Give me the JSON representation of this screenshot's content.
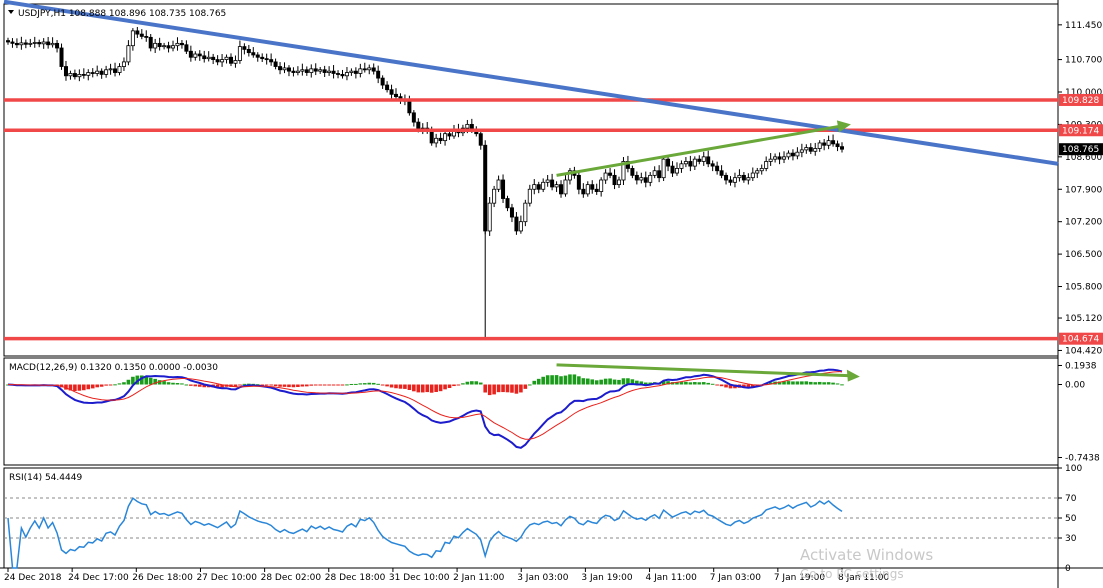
{
  "chart_data": {
    "type": "candlestick",
    "symbol": "USDJPY",
    "timeframe": "H1",
    "header_text": "USDJPY,H1  108.888 108.896 108.735 108.765",
    "last_price": "108.765",
    "price_axis": [
      "111.450",
      "110.700",
      "110.000",
      "109.300",
      "108.600",
      "107.900",
      "107.200",
      "106.500",
      "105.800",
      "105.120",
      "104.420"
    ],
    "price_range": [
      104.3,
      111.9
    ],
    "time_axis": [
      "24 Dec 2018",
      "24 Dec 17:00",
      "26 Dec 18:00",
      "27 Dec 10:00",
      "28 Dec 02:00",
      "28 Dec 18:00",
      "31 Dec 10:00",
      "2 Jan 11:00",
      "3 Jan 03:00",
      "3 Jan 19:00",
      "4 Jan 11:00",
      "7 Jan 03:00",
      "7 Jan 19:00",
      "8 Jan 11:00"
    ],
    "levels": [
      {
        "label": "109.828",
        "value": 109.828,
        "color": "#f04848"
      },
      {
        "label": "109.174",
        "value": 109.174,
        "color": "#f04848"
      },
      {
        "label": "104.674",
        "value": 104.674,
        "color": "#f04848"
      }
    ],
    "trendline": {
      "from": [
        0,
        111.95
      ],
      "to": [
        1.0,
        108.45
      ],
      "color": "#4a74c8"
    },
    "closes": [
      111.08,
      111.05,
      111.02,
      111.06,
      111.03,
      111.05,
      111.07,
      111.04,
      111.08,
      111.02,
      111.05,
      110.95,
      110.55,
      110.35,
      110.4,
      110.33,
      110.38,
      110.36,
      110.42,
      110.4,
      110.45,
      110.38,
      110.48,
      110.5,
      110.42,
      110.55,
      110.65,
      111.0,
      111.32,
      111.25,
      111.2,
      111.18,
      110.95,
      111.05,
      110.98,
      111.0,
      110.95,
      111.0,
      111.05,
      111.02,
      110.88,
      110.75,
      110.82,
      110.78,
      110.72,
      110.75,
      110.7,
      110.65,
      110.7,
      110.75,
      110.62,
      110.68,
      110.98,
      110.92,
      110.85,
      110.8,
      110.75,
      110.72,
      110.7,
      110.65,
      110.55,
      110.48,
      110.52,
      110.45,
      110.42,
      110.45,
      110.48,
      110.42,
      110.5,
      110.45,
      110.48,
      110.42,
      110.45,
      110.4,
      110.38,
      110.35,
      110.42,
      110.45,
      110.4,
      110.5,
      110.48,
      110.52,
      110.45,
      110.3,
      110.15,
      110.05,
      109.95,
      109.9,
      109.85,
      109.8,
      109.55,
      109.35,
      109.2,
      109.22,
      109.18,
      108.9,
      109.0,
      108.95,
      109.1,
      109.05,
      109.18,
      109.12,
      109.22,
      109.3,
      109.2,
      109.1,
      108.85,
      107.0,
      107.6,
      107.9,
      108.1,
      107.7,
      107.5,
      107.3,
      107.0,
      107.2,
      107.6,
      107.9,
      108.0,
      107.9,
      108.05,
      108.1,
      107.95,
      108.0,
      107.8,
      108.1,
      108.3,
      108.2,
      107.9,
      107.8,
      108.0,
      107.9,
      107.85,
      108.1,
      108.25,
      108.2,
      108.0,
      108.1,
      108.5,
      108.35,
      108.2,
      108.1,
      108.15,
      108.05,
      108.2,
      108.3,
      108.15,
      108.55,
      108.4,
      108.25,
      108.35,
      108.45,
      108.5,
      108.4,
      108.55,
      108.5,
      108.6,
      108.45,
      108.4,
      108.3,
      108.2,
      108.1,
      108.05,
      108.15,
      108.2,
      108.1,
      108.15,
      108.25,
      108.3,
      108.35,
      108.5,
      108.55,
      108.6,
      108.55,
      108.6,
      108.68,
      108.62,
      108.7,
      108.75,
      108.8,
      108.72,
      108.78,
      108.9,
      108.85,
      108.95,
      108.88,
      108.82,
      108.765
    ],
    "macd": {
      "label": "MACD(12,26,9) 0.1320 0.1350 0.0000 -0.0030",
      "axis": [
        "0.1938",
        "0.00",
        "-0.7438"
      ],
      "range": [
        -0.82,
        0.27
      ],
      "colors": {
        "up": "#1a9c1a",
        "down": "#e8221c",
        "main": "#1c1ccc",
        "signal": "#e8221c"
      }
    },
    "rsi": {
      "label": "RSI(14) 54.4449",
      "axis": [
        "100",
        "70",
        "50",
        "30",
        "0"
      ],
      "levels": [
        70,
        50,
        30
      ],
      "range": [
        0,
        100
      ],
      "color": "#2a86d8"
    },
    "annotations": [
      {
        "name": "price-divergence-arrow",
        "color": "#6aa83a"
      },
      {
        "name": "macd-divergence-arrow",
        "color": "#6aa83a"
      }
    ]
  },
  "watermark": {
    "line1": "Activate Windows",
    "line2": "Go to PC settings"
  }
}
